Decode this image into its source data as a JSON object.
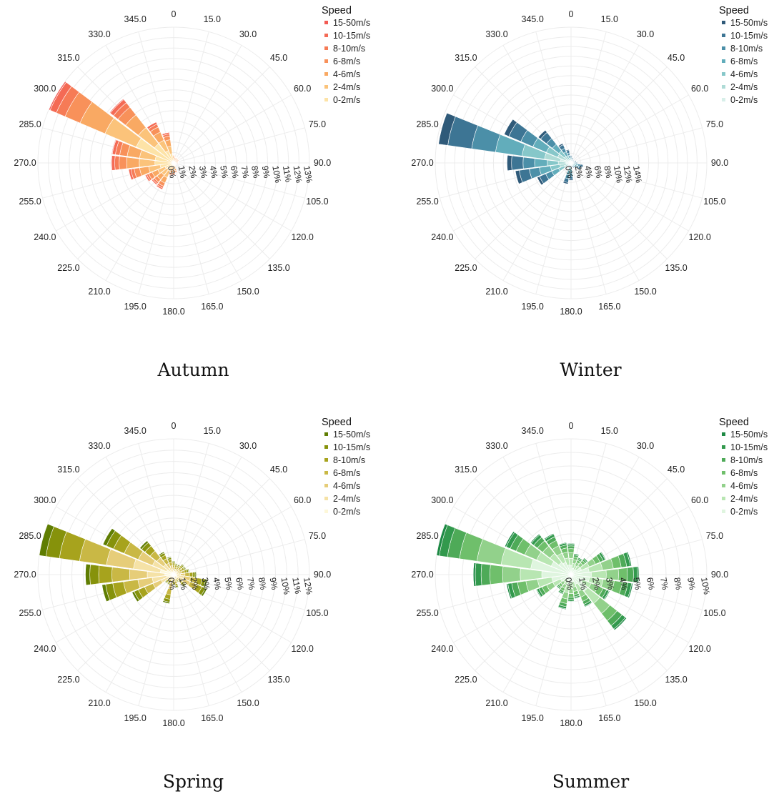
{
  "chart_data": [
    {
      "type": "bar",
      "subtype": "polar-stacked",
      "title": "Autumn",
      "legend_title": "Speed",
      "legend_position": "top-right",
      "direction_labels": [
        "0",
        "15.0",
        "30.0",
        "45.0",
        "60.0",
        "75.0",
        "90.0",
        "105.0",
        "120.0",
        "135.0",
        "150.0",
        "165.0",
        "180.0",
        "195.0",
        "210.0",
        "225.0",
        "240.0",
        "255.0",
        "270.0",
        "285.0",
        "300.0",
        "315.0",
        "330.0",
        "345.0"
      ],
      "radial_ticks": [
        "0%",
        "1%",
        "2%",
        "3%",
        "4%",
        "5%",
        "6%",
        "7%",
        "8%",
        "9%",
        "10%",
        "11%",
        "12%",
        "13%"
      ],
      "rmax": 13,
      "speed_bins": [
        "0-2m/s",
        "2-4m/s",
        "4-6m/s",
        "6-8m/s",
        "8-10m/s",
        "10-15m/s",
        "15-50m/s"
      ],
      "colors": [
        "#fde3a7",
        "#fbc37a",
        "#f9a963",
        "#f8915a",
        "#f67b56",
        "#f46a55",
        "#f25a53"
      ],
      "totals": [
        0.8,
        0.6,
        0.6,
        0.6,
        0.6,
        0.5,
        0.5,
        0.3,
        0.3,
        0.3,
        0.3,
        1.0,
        1.2,
        1.3,
        2.8,
        2.7,
        3.0,
        4.4,
        6.0,
        6.0,
        13.0,
        7.8,
        4.3,
        3.0
      ],
      "shares": [
        0.3,
        0.25,
        0.2,
        0.12,
        0.07,
        0.05,
        0.01
      ]
    },
    {
      "type": "bar",
      "subtype": "polar-stacked",
      "title": "Winter",
      "legend_title": "Speed",
      "legend_position": "top-right",
      "direction_labels": [
        "0",
        "15.0",
        "30.0",
        "45.0",
        "60.0",
        "75.0",
        "90.0",
        "105.0",
        "120.0",
        "135.0",
        "150.0",
        "165.0",
        "180.0",
        "195.0",
        "210.0",
        "225.0",
        "240.0",
        "255.0",
        "270.0",
        "285.0",
        "300.0",
        "315.0",
        "330.0",
        "345.0"
      ],
      "radial_ticks": [
        "0%",
        "2%",
        "4%",
        "6%",
        "8%",
        "10%",
        "12%",
        "14%"
      ],
      "rmax": 14,
      "speed_bins": [
        "0-2m/s",
        "2-4m/s",
        "4-6m/s",
        "6-8m/s",
        "8-10m/s",
        "10-15m/s",
        "15-50m/s"
      ],
      "colors": [
        "#d7efe9",
        "#aedbd6",
        "#86c7c9",
        "#62adbb",
        "#4b8fa8",
        "#3d7594",
        "#2f5a79"
      ],
      "totals": [
        0.8,
        0.6,
        0.5,
        0.4,
        0.4,
        0.6,
        0.7,
        1.3,
        1.2,
        0.7,
        0.6,
        0.5,
        1.8,
        2.2,
        0.5,
        0.4,
        3.8,
        5.8,
        6.6,
        13.8,
        7.5,
        4.3,
        2.2,
        1.4
      ],
      "shares": [
        0.08,
        0.12,
        0.17,
        0.2,
        0.18,
        0.18,
        0.07
      ]
    },
    {
      "type": "bar",
      "subtype": "polar-stacked",
      "title": "Spring",
      "legend_title": "Speed",
      "legend_position": "top-right",
      "direction_labels": [
        "0",
        "15.0",
        "30.0",
        "45.0",
        "60.0",
        "75.0",
        "90.0",
        "105.0",
        "120.0",
        "135.0",
        "150.0",
        "165.0",
        "180.0",
        "195.0",
        "210.0",
        "225.0",
        "240.0",
        "255.0",
        "270.0",
        "285.0",
        "300.0",
        "315.0",
        "330.0",
        "345.0"
      ],
      "radial_ticks": [
        "0%",
        "1%",
        "2%",
        "3%",
        "4%",
        "5%",
        "6%",
        "7%",
        "8%",
        "9%",
        "10%",
        "11%",
        "12%"
      ],
      "rmax": 12,
      "speed_bins": [
        "0-2m/s",
        "2-4m/s",
        "4-6m/s",
        "6-8m/s",
        "8-10m/s",
        "10-15m/s",
        "15-50m/s"
      ],
      "colors": [
        "#fdf7d8",
        "#f5e2a6",
        "#e6cd79",
        "#c9b845",
        "#a7a31d",
        "#86920b",
        "#5f7d02"
      ],
      "totals": [
        1.2,
        1.0,
        1.0,
        1.2,
        1.2,
        1.4,
        2.0,
        3.0,
        3.2,
        1.4,
        0.8,
        1.2,
        1.0,
        2.6,
        1.0,
        1.0,
        4.0,
        6.4,
        7.8,
        12.0,
        6.8,
        3.8,
        2.2,
        1.6
      ],
      "shares": [
        0.1,
        0.2,
        0.2,
        0.2,
        0.15,
        0.1,
        0.05
      ]
    },
    {
      "type": "bar",
      "subtype": "polar-stacked",
      "title": "Summer",
      "legend_title": "Speed",
      "legend_position": "top-right",
      "direction_labels": [
        "0",
        "15.0",
        "30.0",
        "45.0",
        "60.0",
        "75.0",
        "90.0",
        "105.0",
        "120.0",
        "135.0",
        "150.0",
        "165.0",
        "180.0",
        "195.0",
        "210.0",
        "225.0",
        "240.0",
        "255.0",
        "270.0",
        "285.0",
        "300.0",
        "315.0",
        "330.0",
        "345.0"
      ],
      "radial_ticks": [
        "0%",
        "1%",
        "2%",
        "3%",
        "4%",
        "5%",
        "6%",
        "7%",
        "8%",
        "9%",
        "10%"
      ],
      "rmax": 10,
      "speed_bins": [
        "0-2m/s",
        "2-4m/s",
        "4-6m/s",
        "6-8m/s",
        "8-10m/s",
        "10-15m/s",
        "15-50m/s"
      ],
      "colors": [
        "#dff5df",
        "#b8e6b2",
        "#92d18b",
        "#6fbf6b",
        "#4eaa58",
        "#32994d",
        "#1d8944"
      ],
      "totals": [
        2.3,
        1.6,
        1.4,
        1.6,
        2.8,
        4.5,
        5.0,
        4.6,
        3.1,
        5.2,
        2.6,
        1.8,
        2.0,
        2.6,
        1.6,
        1.4,
        2.8,
        4.8,
        7.2,
        10.0,
        5.3,
        3.8,
        3.3,
        2.4
      ],
      "shares": [
        0.3,
        0.22,
        0.18,
        0.13,
        0.09,
        0.06,
        0.02
      ]
    }
  ]
}
